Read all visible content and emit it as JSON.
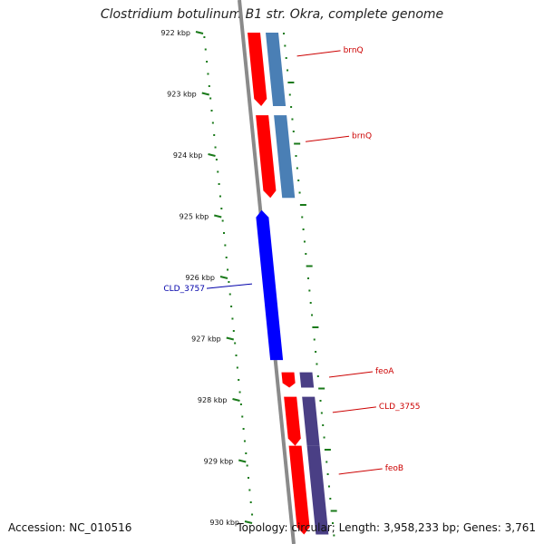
{
  "title": "Clostridium botulinum B1 str. Okra, complete genome",
  "footer": {
    "accession": "Accession: NC_010516",
    "topology": "Topology: circular; Length: 3,958,233 bp; Genes: 3,761"
  },
  "colors": {
    "backbone": "#8a8a8a",
    "tick": "#1a7a1a",
    "forward_cds": "#ff0000",
    "reverse_cds": "#0000ff",
    "gene_steelblue": "#4a7fb5",
    "gene_darkslate": "#4a3f85",
    "label_forward": "#cc0000",
    "label_reverse": "#0000aa"
  },
  "ruler": {
    "ticks": [
      "922 kbp",
      "923 kbp",
      "924 kbp",
      "925 kbp",
      "926 kbp",
      "927 kbp",
      "928 kbp",
      "929 kbp",
      "930 kbp"
    ]
  },
  "genes": [
    {
      "label": "brnQ",
      "strand": "forward",
      "start_kbp": 922.0,
      "end_kbp": 923.2
    },
    {
      "label": "brnQ",
      "strand": "forward",
      "start_kbp": 923.35,
      "end_kbp": 924.7
    },
    {
      "label": "CLD_3757",
      "strand": "reverse",
      "start_kbp": 924.9,
      "end_kbp": 927.35
    },
    {
      "label": "feoA",
      "strand": "forward",
      "start_kbp": 927.55,
      "end_kbp": 927.8
    },
    {
      "label": "CLD_3755",
      "strand": "forward",
      "start_kbp": 927.95,
      "end_kbp": 928.75
    },
    {
      "label": "feoB",
      "strand": "forward",
      "start_kbp": 928.75,
      "end_kbp": 930.2
    }
  ]
}
